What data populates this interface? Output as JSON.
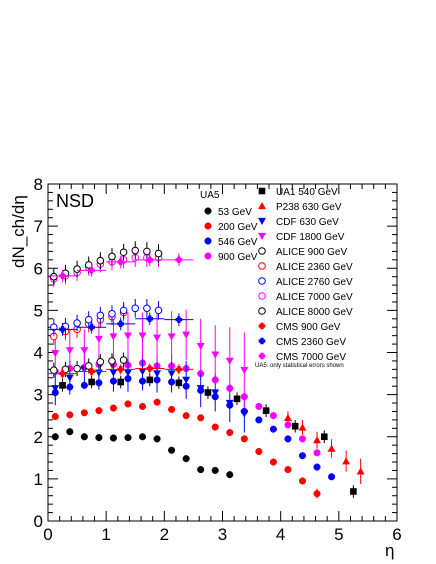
{
  "chart_data": {
    "type": "scatter",
    "title": "",
    "annotation": "NSD",
    "xlabel": "η",
    "ylabel": "dN_ch/dη",
    "xlim": [
      0,
      6
    ],
    "ylim": [
      0,
      8
    ],
    "xticks": [
      "0",
      "1",
      "2",
      "3",
      "4",
      "5",
      "6"
    ],
    "yticks": [
      "0",
      "1",
      "2",
      "3",
      "4",
      "5",
      "6",
      "7",
      "8"
    ],
    "grid": false,
    "legend_placement": "top-right",
    "legend_group_title": "UA5",
    "legend_footnote": "UA5: only statistical errors shown",
    "series": [
      {
        "name": "53 GeV",
        "marker": "circle",
        "filled": true,
        "color": "#000000",
        "x": [
          0.125,
          0.375,
          0.625,
          0.875,
          1.125,
          1.375,
          1.625,
          1.875,
          2.125,
          2.375,
          2.625,
          2.875,
          3.125
        ],
        "y": [
          2.0,
          2.12,
          2.0,
          1.98,
          1.97,
          1.98,
          2.0,
          1.95,
          1.68,
          1.48,
          1.22,
          1.2,
          1.1
        ],
        "yerr": [
          0.08,
          0.08,
          0.08,
          0.08,
          0.08,
          0.08,
          0.08,
          0.08,
          0.07,
          0.07,
          0.06,
          0.06,
          0.06
        ]
      },
      {
        "name": "200 GeV",
        "marker": "circle",
        "filled": true,
        "color": "#ff0000",
        "x": [
          0.125,
          0.375,
          0.625,
          0.875,
          1.125,
          1.375,
          1.625,
          1.875,
          2.125,
          2.375,
          2.625,
          2.875,
          3.125,
          3.375,
          3.625,
          3.875,
          4.125,
          4.375,
          4.625
        ],
        "y": [
          2.48,
          2.52,
          2.57,
          2.62,
          2.68,
          2.78,
          2.72,
          2.82,
          2.65,
          2.5,
          2.45,
          2.23,
          2.1,
          1.95,
          1.65,
          1.4,
          1.22,
          0.95,
          0.65
        ],
        "yerr": [
          0.05,
          0.05,
          0.05,
          0.05,
          0.05,
          0.05,
          0.05,
          0.05,
          0.05,
          0.05,
          0.05,
          0.05,
          0.05,
          0.05,
          0.05,
          0.05,
          0.05,
          0.05,
          0.12
        ]
      },
      {
        "name": "546 GeV",
        "marker": "circle",
        "filled": true,
        "color": "#0000ff",
        "x": [
          0.125,
          0.375,
          0.625,
          0.875,
          1.125,
          1.375,
          1.625,
          1.875,
          2.125,
          2.375,
          2.625,
          2.875,
          3.125,
          3.375,
          3.625,
          3.875,
          4.125,
          4.375,
          4.625,
          4.875
        ],
        "y": [
          3.05,
          3.18,
          3.22,
          3.28,
          3.32,
          3.38,
          3.32,
          3.35,
          3.3,
          3.2,
          3.1,
          2.95,
          2.75,
          2.6,
          2.4,
          2.18,
          1.95,
          1.55,
          1.28,
          1.05
        ],
        "yerr": [
          0.05,
          0.05,
          0.05,
          0.05,
          0.05,
          0.05,
          0.05,
          0.05,
          0.05,
          0.05,
          0.05,
          0.05,
          0.05,
          0.05,
          0.05,
          0.05,
          0.05,
          0.05,
          0.05,
          0.05
        ]
      },
      {
        "name": "900 GeV",
        "marker": "circle",
        "filled": true,
        "color": "#ff00ff",
        "x": [
          0.125,
          0.375,
          0.625,
          0.875,
          1.125,
          1.375,
          1.625,
          1.875,
          2.125,
          2.375,
          2.625,
          2.875,
          3.125,
          3.375,
          3.625,
          3.875,
          4.125,
          4.375,
          4.625
        ],
        "y": [
          3.55,
          3.62,
          3.65,
          3.72,
          3.72,
          3.7,
          3.75,
          3.68,
          3.68,
          3.62,
          3.5,
          3.35,
          3.15,
          2.95,
          2.72,
          2.5,
          2.28,
          1.95,
          1.62
        ],
        "yerr": [
          0.05,
          0.05,
          0.05,
          0.05,
          0.05,
          0.05,
          0.05,
          0.05,
          0.05,
          0.05,
          0.05,
          0.05,
          0.05,
          0.05,
          0.05,
          0.05,
          0.05,
          0.05,
          0.05
        ]
      },
      {
        "name": "UA1 540 GeV",
        "marker": "square",
        "filled": true,
        "color": "#000000",
        "x": [
          0.25,
          0.75,
          1.25,
          1.75,
          2.25,
          2.75,
          3.25,
          3.75,
          4.25,
          4.75,
          5.25
        ],
        "y": [
          3.22,
          3.3,
          3.3,
          3.35,
          3.28,
          3.05,
          2.9,
          2.62,
          2.25,
          2.0,
          0.7
        ],
        "yerr": [
          0.15,
          0.15,
          0.15,
          0.15,
          0.15,
          0.15,
          0.15,
          0.15,
          0.15,
          0.15,
          0.15
        ]
      },
      {
        "name": "P238 630 GeV",
        "marker": "triangle-up",
        "filled": true,
        "color": "#ff0000",
        "x": [
          4.125,
          4.375,
          4.625,
          4.875,
          5.125,
          5.375
        ],
        "y": [
          2.45,
          2.22,
          1.92,
          1.72,
          1.42,
          1.18
        ],
        "yerr": [
          0.15,
          0.18,
          0.2,
          0.22,
          0.25,
          0.3
        ]
      },
      {
        "name": "CDF 630 GeV",
        "marker": "triangle-down",
        "filled": true,
        "color": "#0000ff",
        "x": [
          0.125,
          0.375,
          0.625,
          0.875,
          1.125,
          1.375,
          1.625,
          1.875,
          2.125,
          2.375,
          2.625,
          2.875,
          3.125,
          3.375
        ],
        "y": [
          3.15,
          3.4,
          3.6,
          3.52,
          3.52,
          3.52,
          3.55,
          3.5,
          3.5,
          3.35,
          3.15,
          3.05,
          2.8,
          2.55
        ],
        "yerr": [
          0.4,
          0.4,
          0.4,
          0.4,
          0.45,
          0.45,
          0.45,
          0.45,
          0.45,
          0.45,
          0.45,
          0.45,
          0.45,
          0.45
        ]
      },
      {
        "name": "CDF 1800 GeV",
        "marker": "triangle-down",
        "filled": true,
        "color": "#ff00ff",
        "x": [
          0.125,
          0.375,
          0.625,
          0.875,
          1.125,
          1.375,
          1.625,
          1.875,
          2.125,
          2.375,
          2.625,
          2.875,
          3.125,
          3.375
        ],
        "y": [
          3.98,
          4.05,
          4.05,
          4.32,
          4.38,
          4.4,
          4.4,
          4.35,
          4.38,
          4.42,
          4.15,
          3.95,
          3.8,
          3.58
        ],
        "yerr": [
          0.5,
          0.5,
          0.5,
          0.5,
          0.55,
          0.55,
          0.55,
          0.6,
          0.6,
          0.6,
          0.65,
          0.7,
          0.8,
          0.9
        ]
      },
      {
        "name": "ALICE 900 GeV",
        "marker": "circle",
        "filled": false,
        "color": "#000000",
        "x": [
          0.1,
          0.3,
          0.5,
          0.7,
          0.9,
          1.1,
          1.3
        ],
        "y": [
          3.58,
          3.6,
          3.62,
          3.68,
          3.78,
          3.8,
          3.82
        ],
        "yerr": [
          0.18,
          0.18,
          0.18,
          0.18,
          0.18,
          0.18,
          0.18
        ]
      },
      {
        "name": "ALICE 2360 GeV",
        "marker": "circle",
        "filled": false,
        "color": "#ff0000",
        "x": [
          0.1,
          0.3,
          0.5,
          0.7,
          0.9,
          1.1,
          1.3
        ],
        "y": [
          4.38,
          4.5,
          4.55,
          4.68,
          4.78,
          4.85,
          4.95
        ],
        "yerr": [
          0.2,
          0.2,
          0.2,
          0.2,
          0.2,
          0.2,
          0.2
        ]
      },
      {
        "name": "ALICE 2760 GeV",
        "marker": "circle",
        "filled": false,
        "color": "#0000ff",
        "x": [
          0.1,
          0.3,
          0.5,
          0.7,
          0.9,
          1.1,
          1.3,
          1.5,
          1.7,
          1.9
        ],
        "y": [
          4.6,
          4.62,
          4.7,
          4.78,
          4.88,
          4.92,
          5.0,
          5.05,
          5.05,
          5.0
        ],
        "yerr": [
          0.2,
          0.2,
          0.2,
          0.2,
          0.2,
          0.2,
          0.2,
          0.22,
          0.22,
          0.22
        ]
      },
      {
        "name": "ALICE 7000 GeV",
        "marker": "circle",
        "filled": false,
        "color": "#ff00ff",
        "x": [
          0.1,
          0.3,
          0.5,
          0.7,
          0.9,
          1.1,
          1.3,
          1.5,
          1.7,
          1.9
        ],
        "y": [
          5.75,
          5.82,
          5.9,
          6.02,
          6.1,
          6.15,
          6.2,
          6.25,
          6.25,
          6.25
        ],
        "yerr": [
          0.2,
          0.2,
          0.2,
          0.2,
          0.2,
          0.2,
          0.2,
          0.22,
          0.22,
          0.22
        ]
      },
      {
        "name": "ALICE 8000 GeV",
        "marker": "circle",
        "filled": false,
        "color": "#000000",
        "x": [
          0.1,
          0.3,
          0.5,
          0.7,
          0.9,
          1.1,
          1.3,
          1.5,
          1.7,
          1.9
        ],
        "y": [
          5.8,
          5.88,
          5.98,
          6.08,
          6.18,
          6.28,
          6.38,
          6.42,
          6.4,
          6.35
        ],
        "yerr": [
          0.2,
          0.2,
          0.2,
          0.2,
          0.2,
          0.2,
          0.2,
          0.22,
          0.22,
          0.22
        ]
      },
      {
        "name": "CMS 900 GeV",
        "marker": "cross",
        "filled": true,
        "color": "#ff0000",
        "x": [
          0.25,
          0.75,
          1.25,
          1.75,
          2.25
        ],
        "y": [
          3.5,
          3.55,
          3.6,
          3.62,
          3.6
        ],
        "xerr": [
          0.25,
          0.25,
          0.25,
          0.25,
          0.25
        ],
        "yerr": [
          0.12,
          0.12,
          0.12,
          0.12,
          0.12
        ]
      },
      {
        "name": "CMS 2360 GeV",
        "marker": "cross",
        "filled": true,
        "color": "#0000ff",
        "x": [
          0.25,
          0.75,
          1.25,
          1.75,
          2.25
        ],
        "y": [
          4.55,
          4.6,
          4.68,
          4.8,
          4.78
        ],
        "xerr": [
          0.25,
          0.25,
          0.25,
          0.25,
          0.25
        ],
        "yerr": [
          0.15,
          0.15,
          0.15,
          0.15,
          0.15
        ]
      },
      {
        "name": "CMS 7000 GeV",
        "marker": "cross",
        "filled": true,
        "color": "#ff00ff",
        "x": [
          0.25,
          0.75,
          1.25,
          1.75,
          2.25
        ],
        "y": [
          5.82,
          5.95,
          6.15,
          6.2,
          6.2
        ],
        "xerr": [
          0.25,
          0.25,
          0.25,
          0.25,
          0.25
        ],
        "yerr": [
          0.15,
          0.15,
          0.15,
          0.15,
          0.15
        ]
      }
    ]
  }
}
